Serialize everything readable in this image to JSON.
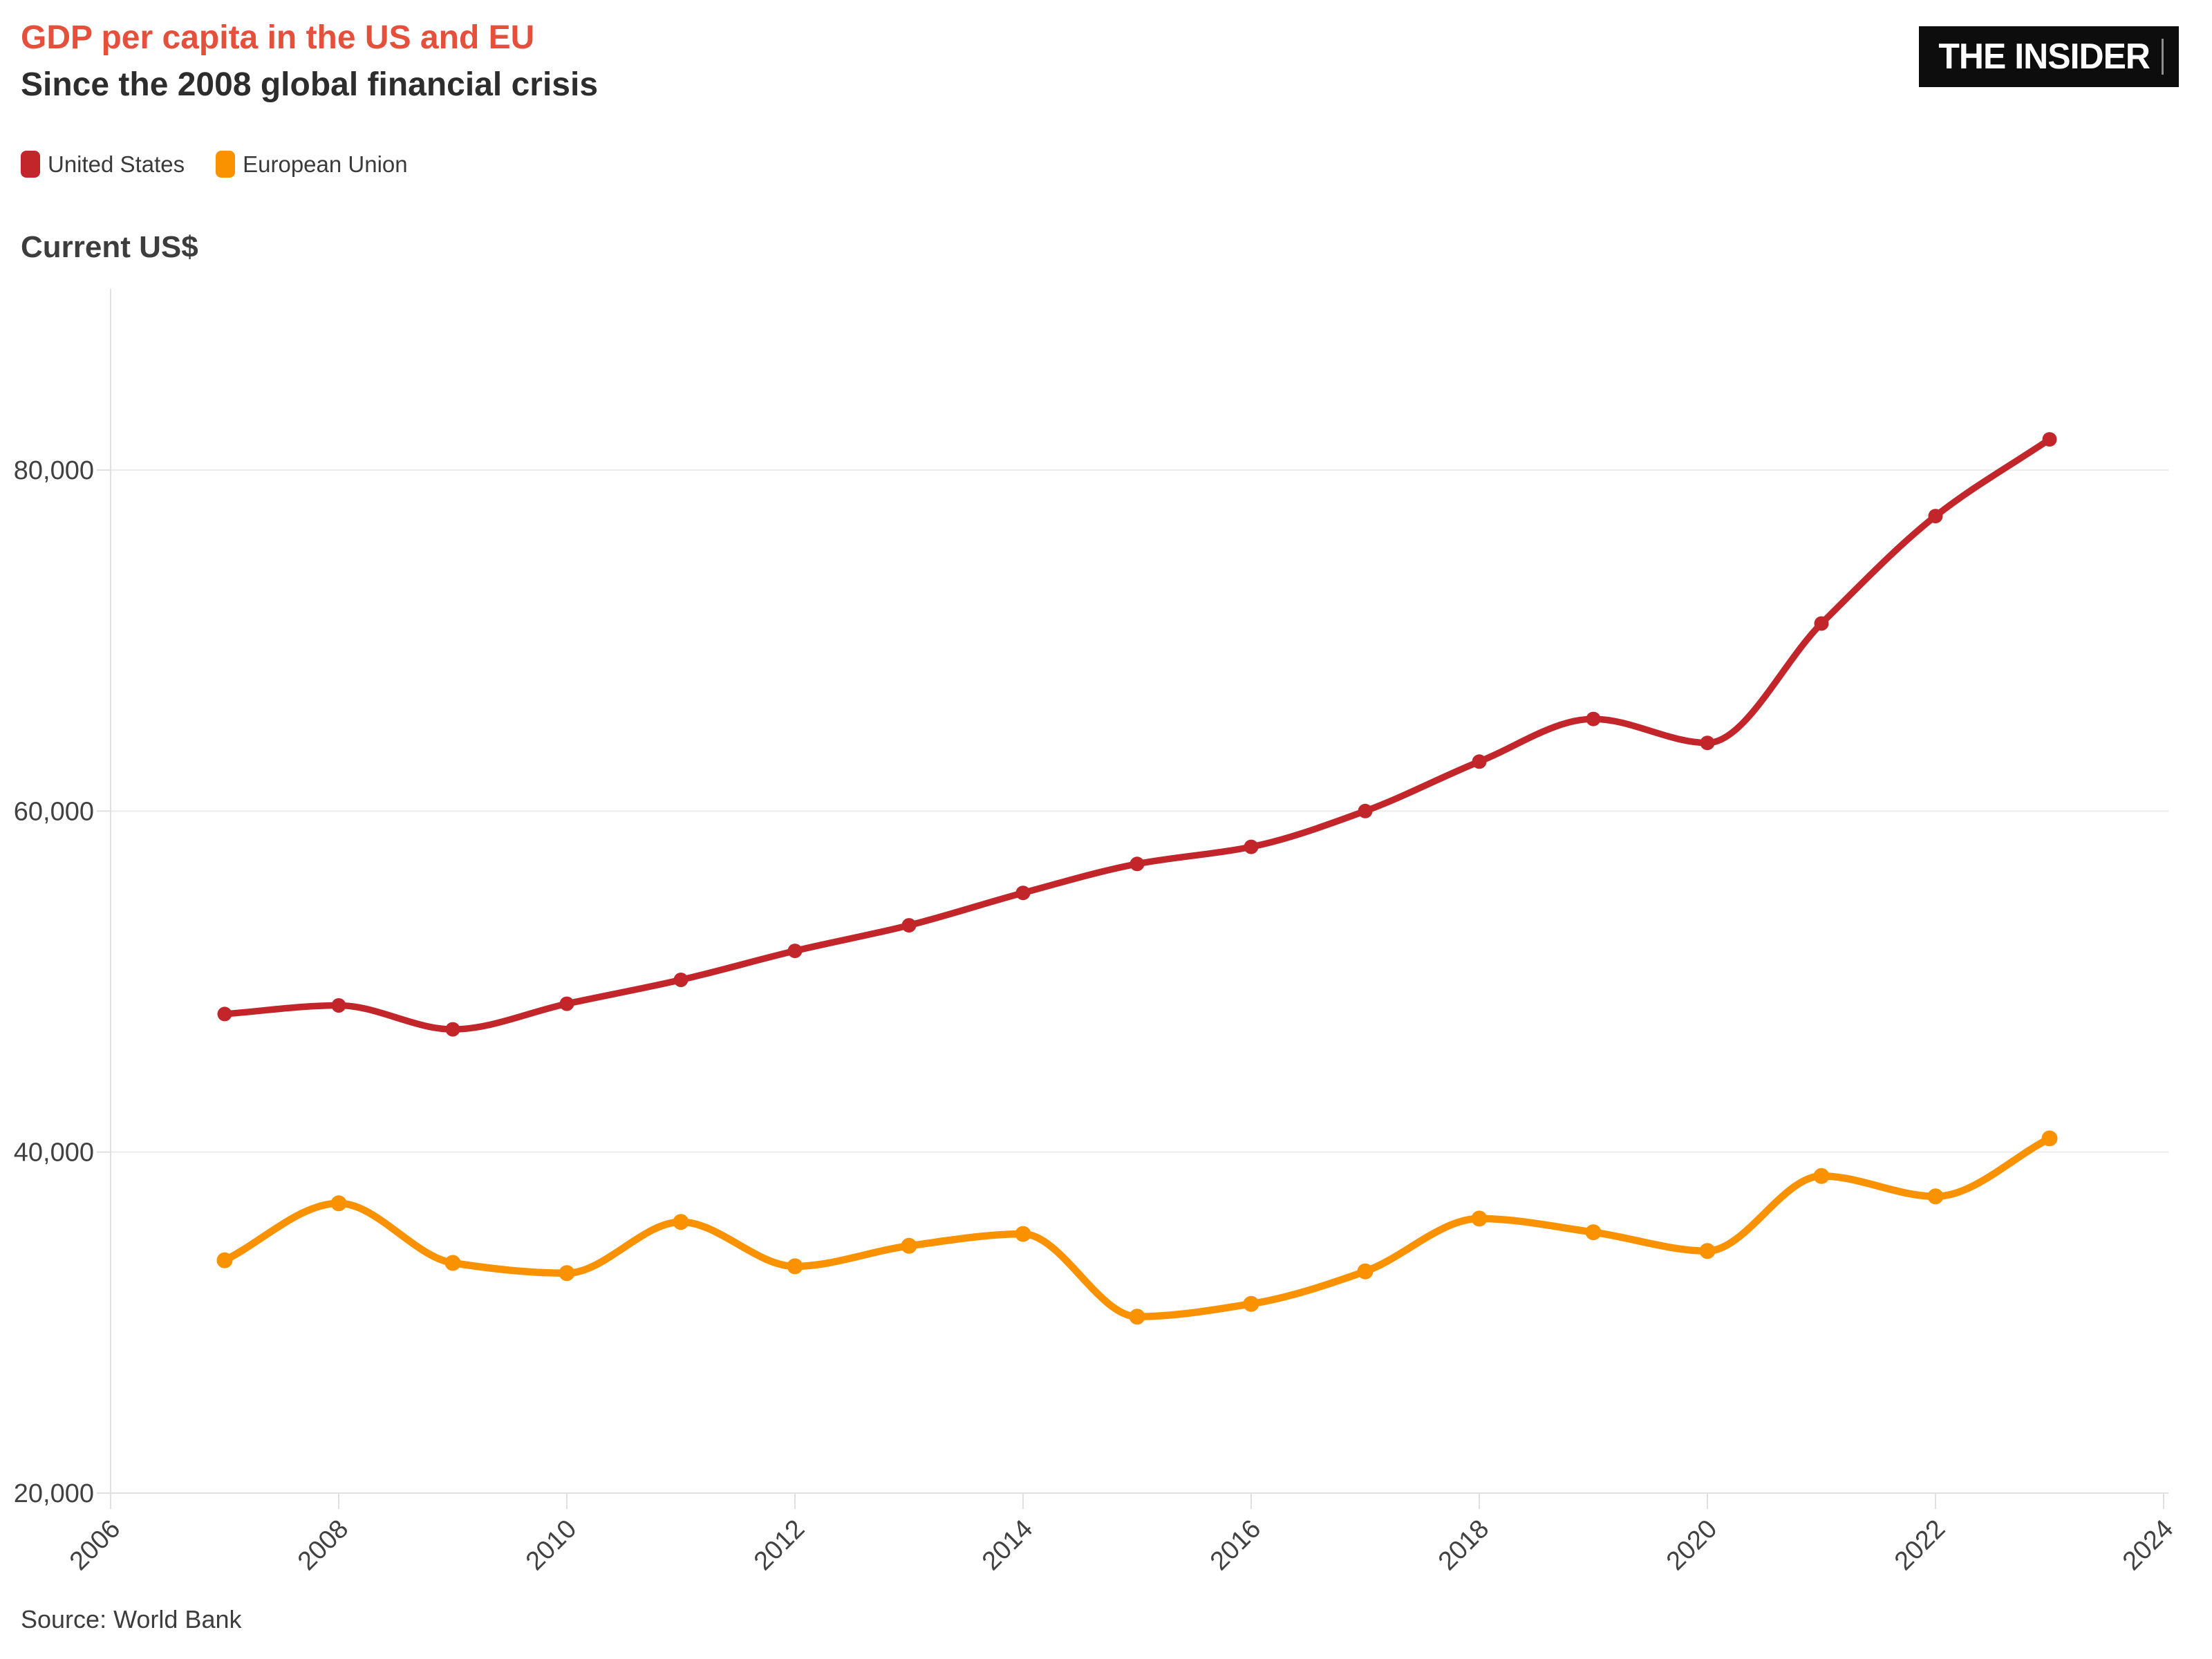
{
  "header": {
    "title": "GDP per capita in the US and EU",
    "subtitle": "Since the 2008 global financial crisis"
  },
  "brand": {
    "logo_text": "THE INSIDER"
  },
  "legend": {
    "items": [
      {
        "label": "United States",
        "color": "#c2262b"
      },
      {
        "label": "European Union",
        "color": "#fa9200"
      }
    ]
  },
  "axis_title": "Current US$",
  "source_note": "Source: World Bank",
  "colors": {
    "title_accent": "#e5503c",
    "subtitle_text": "#2d2d2d",
    "us_line": "#c2262b",
    "eu_line": "#fa9200",
    "tick_text": "#414141",
    "gridline": "#ececec",
    "axis_line": "#e0e0e0",
    "logo_bg": "#0d0d0d",
    "logo_text": "#ffffff"
  },
  "chart_data": {
    "type": "line",
    "title": "GDP per capita in the US and EU",
    "subtitle": "Since the 2008 global financial crisis",
    "ylabel": "Current US$",
    "xlabel": "",
    "x": [
      2007,
      2008,
      2009,
      2010,
      2011,
      2012,
      2013,
      2014,
      2015,
      2016,
      2017,
      2018,
      2019,
      2020,
      2021,
      2022,
      2023
    ],
    "series": [
      {
        "name": "United States",
        "color": "#c2262b",
        "values": [
          48100,
          48600,
          47200,
          48700,
          50100,
          51800,
          53300,
          55200,
          56900,
          57900,
          60000,
          62900,
          65400,
          64000,
          71000,
          77300,
          81800
        ]
      },
      {
        "name": "European Union",
        "color": "#fa9200",
        "values": [
          33650,
          37000,
          33500,
          32900,
          35900,
          33300,
          34500,
          35200,
          30350,
          31100,
          33000,
          36100,
          35300,
          34200,
          38600,
          37400,
          40800
        ]
      }
    ],
    "x_ticks": [
      2006,
      2008,
      2010,
      2012,
      2014,
      2016,
      2018,
      2020,
      2022,
      2024
    ],
    "y_ticks": [
      {
        "value": 20000,
        "label": "20,000"
      },
      {
        "value": 40000,
        "label": "40,000"
      },
      {
        "value": 60000,
        "label": "60,000"
      },
      {
        "value": 80000,
        "label": "80,000"
      }
    ],
    "xlim": [
      2006,
      2024
    ],
    "ylim": [
      20000,
      90500
    ],
    "grid": "horizontal",
    "legend_position": "top-left",
    "point_markers": true,
    "line_smoothing": "monotone"
  }
}
